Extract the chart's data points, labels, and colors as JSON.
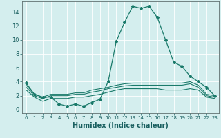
{
  "lines": [
    {
      "x": [
        0,
        1,
        2,
        3,
        4,
        5,
        6,
        7,
        8,
        9,
        10,
        11,
        12,
        13,
        14,
        15,
        16,
        17,
        18,
        19,
        20,
        21,
        22,
        23
      ],
      "y": [
        3.8,
        2.2,
        1.8,
        1.8,
        0.8,
        0.5,
        0.8,
        0.5,
        1.0,
        1.5,
        4.0,
        9.8,
        12.5,
        14.8,
        14.5,
        14.8,
        13.2,
        10.0,
        6.8,
        6.2,
        4.8,
        4.0,
        3.2,
        2.0
      ],
      "color": "#1a7a6a",
      "linewidth": 0.9,
      "marker": "D",
      "markersize": 2.0
    },
    {
      "x": [
        0,
        1,
        2,
        3,
        4,
        5,
        6,
        7,
        8,
        9,
        10,
        11,
        12,
        13,
        14,
        15,
        16,
        17,
        18,
        19,
        20,
        21,
        22,
        23
      ],
      "y": [
        3.5,
        2.2,
        1.8,
        2.2,
        2.2,
        2.2,
        2.4,
        2.4,
        2.8,
        3.0,
        3.2,
        3.5,
        3.7,
        3.8,
        3.8,
        3.8,
        3.8,
        3.8,
        3.8,
        3.8,
        4.0,
        3.5,
        2.2,
        2.0
      ],
      "color": "#1a7a6a",
      "linewidth": 0.8,
      "marker": null,
      "markersize": 0
    },
    {
      "x": [
        0,
        1,
        2,
        3,
        4,
        5,
        6,
        7,
        8,
        9,
        10,
        11,
        12,
        13,
        14,
        15,
        16,
        17,
        18,
        19,
        20,
        21,
        22,
        23
      ],
      "y": [
        3.2,
        2.0,
        1.6,
        2.0,
        2.0,
        2.0,
        2.2,
        2.2,
        2.5,
        2.7,
        3.0,
        3.2,
        3.4,
        3.5,
        3.5,
        3.5,
        3.5,
        3.5,
        3.5,
        3.5,
        3.7,
        3.2,
        2.0,
        1.8
      ],
      "color": "#1a7a6a",
      "linewidth": 0.8,
      "marker": null,
      "markersize": 0
    },
    {
      "x": [
        0,
        1,
        2,
        3,
        4,
        5,
        6,
        7,
        8,
        9,
        10,
        11,
        12,
        13,
        14,
        15,
        16,
        17,
        18,
        19,
        20,
        21,
        22,
        23
      ],
      "y": [
        2.8,
        1.8,
        1.2,
        1.6,
        1.6,
        1.6,
        1.8,
        1.8,
        2.0,
        2.2,
        2.5,
        2.8,
        3.0,
        3.0,
        3.0,
        3.0,
        3.0,
        2.8,
        2.8,
        2.8,
        3.0,
        2.8,
        1.8,
        1.6
      ],
      "color": "#1a7a6a",
      "linewidth": 0.8,
      "marker": null,
      "markersize": 0
    }
  ],
  "bg_color": "#d4eeee",
  "grid_color": "#ffffff",
  "xlabel": "Humidex (Indice chaleur)",
  "xlabel_fontsize": 7,
  "xlim": [
    -0.5,
    23.5
  ],
  "ylim": [
    -0.5,
    15.5
  ],
  "xticks": [
    0,
    1,
    2,
    3,
    4,
    5,
    6,
    7,
    8,
    9,
    10,
    11,
    12,
    13,
    14,
    15,
    16,
    17,
    18,
    19,
    20,
    21,
    22,
    23
  ],
  "yticks": [
    0,
    2,
    4,
    6,
    8,
    10,
    12,
    14
  ],
  "xtick_fontsize": 5.0,
  "ytick_fontsize": 6.0,
  "tick_color": "#1a6060",
  "spine_color": "#607070"
}
